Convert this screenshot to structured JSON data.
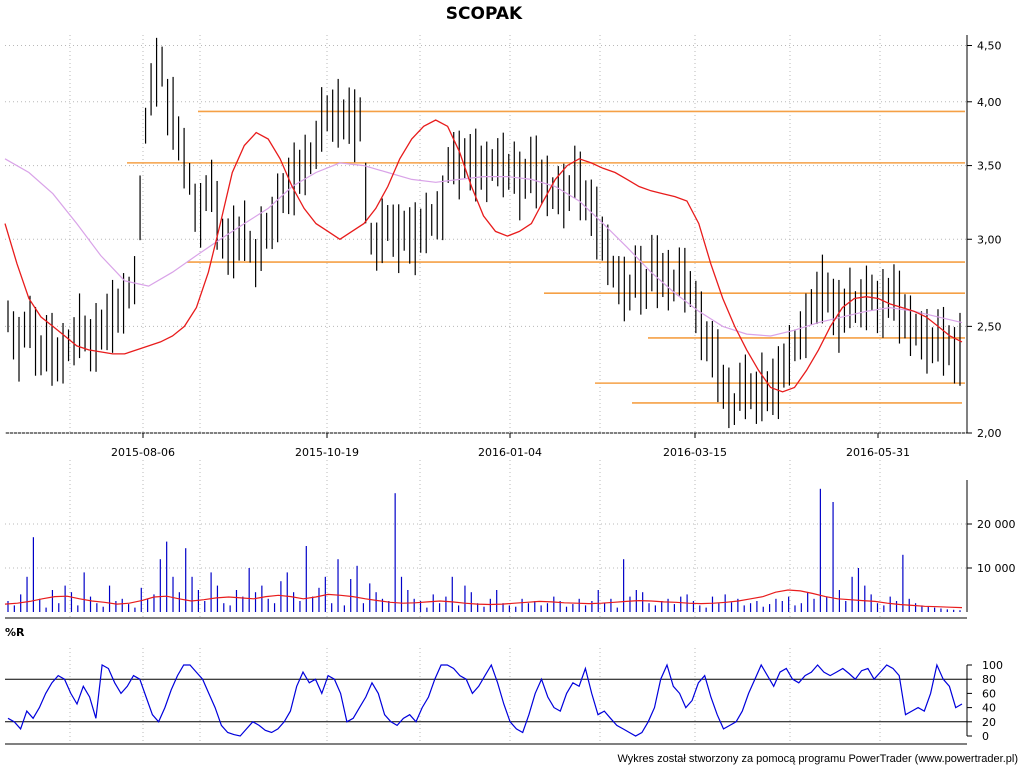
{
  "chart_data": [
    {
      "panel": "price",
      "type": "line",
      "title": "SCOPAK",
      "y_scale": "log",
      "ylim": [
        2.0,
        4.6
      ],
      "y_ticks": [
        "4,50",
        "4,00",
        "3,50",
        "3,00",
        "2,50",
        "2,00"
      ],
      "y_tick_values": [
        4.5,
        4.0,
        3.5,
        3.0,
        2.5,
        2.0
      ],
      "x_ticks": [
        "2015-08-06",
        "2015-10-19",
        "2016-01-04",
        "2016-03-15",
        "2016-05-31"
      ],
      "grid": true,
      "colors": {
        "bars": "#000000",
        "ma_short": "#e81c1c",
        "ma_long": "#d9a3e8",
        "support_lines": "#f5a046"
      },
      "bar_series_close": [
        2.55,
        2.45,
        2.38,
        2.48,
        2.52,
        2.42,
        2.35,
        2.41,
        2.38,
        2.33,
        2.36,
        2.4,
        2.42,
        2.5,
        2.46,
        2.4,
        2.44,
        2.48,
        2.52,
        2.55,
        2.58,
        2.62,
        2.68,
        2.75,
        3.2,
        3.8,
        4.1,
        4.25,
        4.3,
        3.95,
        3.9,
        3.7,
        3.55,
        3.4,
        3.2,
        3.15,
        3.3,
        3.35,
        3.15,
        3.0,
        2.95,
        2.98,
        3.0,
        3.05,
        2.95,
        2.85,
        3.0,
        3.05,
        3.1,
        3.2,
        3.3,
        3.35,
        3.4,
        3.45,
        3.5,
        3.55,
        3.65,
        3.85,
        3.9,
        3.88,
        3.9,
        3.85,
        3.88,
        3.8,
        3.85,
        3.3,
        3.0,
        2.95,
        3.05,
        3.1,
        3.05,
        3.0,
        3.05,
        3.02,
        3.0,
        3.05,
        3.1,
        3.12,
        3.15,
        3.2,
        3.5,
        3.55,
        3.5,
        3.55,
        3.52,
        3.5,
        3.48,
        3.45,
        3.5,
        3.52,
        3.5,
        3.45,
        3.48,
        3.35,
        3.4,
        3.5,
        3.45,
        3.38,
        3.35,
        3.3,
        3.32,
        3.28,
        3.3,
        3.45,
        3.35,
        3.25,
        3.2,
        3.1,
        3.0,
        2.9,
        2.8,
        2.75,
        2.7,
        2.68,
        2.8,
        2.75,
        2.7,
        2.85,
        2.8,
        2.78,
        2.75,
        2.72,
        2.8,
        2.75,
        2.7,
        2.6,
        2.5,
        2.42,
        2.38,
        2.3,
        2.2,
        2.15,
        2.1,
        2.2,
        2.2,
        2.18,
        2.15,
        2.2,
        2.18,
        2.2,
        2.22,
        2.3,
        2.35,
        2.4,
        2.45,
        2.5,
        2.6,
        2.65,
        2.7,
        2.68,
        2.6,
        2.55,
        2.58,
        2.65,
        2.6,
        2.62,
        2.65,
        2.68,
        2.6,
        2.62,
        2.65,
        2.68,
        2.6,
        2.55,
        2.5,
        2.48,
        2.45,
        2.42,
        2.4,
        2.45,
        2.42,
        2.4,
        2.35,
        2.38
      ],
      "ma_short": [
        3.1,
        2.85,
        2.65,
        2.55,
        2.5,
        2.45,
        2.4,
        2.38,
        2.37,
        2.36,
        2.36,
        2.38,
        2.4,
        2.42,
        2.45,
        2.5,
        2.6,
        2.8,
        3.1,
        3.45,
        3.65,
        3.75,
        3.7,
        3.55,
        3.35,
        3.2,
        3.1,
        3.05,
        3.0,
        3.05,
        3.1,
        3.2,
        3.35,
        3.55,
        3.7,
        3.8,
        3.85,
        3.8,
        3.6,
        3.35,
        3.15,
        3.05,
        3.02,
        3.05,
        3.1,
        3.25,
        3.4,
        3.5,
        3.55,
        3.52,
        3.48,
        3.45,
        3.4,
        3.35,
        3.32,
        3.3,
        3.28,
        3.25,
        3.1,
        2.85,
        2.65,
        2.5,
        2.38,
        2.28,
        2.2,
        2.18,
        2.2,
        2.28,
        2.38,
        2.5,
        2.6,
        2.65,
        2.66,
        2.65,
        2.62,
        2.6,
        2.58,
        2.55,
        2.5,
        2.45,
        2.42
      ],
      "ma_long": [
        3.55,
        3.45,
        3.3,
        3.1,
        2.9,
        2.75,
        2.72,
        2.8,
        2.9,
        3.0,
        3.1,
        3.2,
        3.35,
        3.45,
        3.52,
        3.5,
        3.45,
        3.4,
        3.38,
        3.4,
        3.42,
        3.42,
        3.4,
        3.35,
        3.25,
        3.1,
        2.95,
        2.8,
        2.68,
        2.58,
        2.5,
        2.46,
        2.45,
        2.48,
        2.52,
        2.55,
        2.58,
        2.6,
        2.58,
        2.55,
        2.52
      ],
      "support_lines": [
        3.92,
        3.52,
        2.86,
        2.68,
        2.44,
        2.22,
        2.13
      ]
    },
    {
      "panel": "volume",
      "type": "bar",
      "ylim": [
        0,
        30000
      ],
      "y_ticks": [
        "20 000",
        "10 000"
      ],
      "y_tick_values": [
        20000,
        10000
      ],
      "grid": true,
      "colors": {
        "bars": "#0000c8",
        "average": "#e81c1c"
      },
      "values": [
        2500,
        1500,
        4000,
        8000,
        17000,
        3000,
        1000,
        5000,
        2000,
        6000,
        4500,
        1500,
        9000,
        3500,
        2000,
        1200,
        6000,
        2500,
        3000,
        1800,
        1000,
        5500,
        3000,
        4000,
        12000,
        16000,
        8000,
        4500,
        14500,
        8000,
        5000,
        2500,
        9000,
        6000,
        2000,
        1500,
        5000,
        3500,
        10000,
        4500,
        6000,
        3000,
        2000,
        7000,
        9000,
        4500,
        2500,
        15000,
        3500,
        5500,
        8000,
        2000,
        12000,
        1500,
        7500,
        10500,
        2000,
        6500,
        4500,
        3000,
        2500,
        27000,
        8000,
        5000,
        3000,
        2500,
        1000,
        4000,
        2000,
        3500,
        8000,
        1500,
        6000,
        4500,
        2000,
        1200,
        3000,
        5000,
        2000,
        1500,
        1200,
        3000,
        2000,
        2500,
        1500,
        2000,
        3500,
        2500,
        1200,
        1800,
        3000,
        1500,
        2500,
        5000,
        2000,
        3000,
        1000,
        12000,
        3500,
        5000,
        4500,
        2000,
        1500,
        2500,
        3000,
        1800,
        3500,
        4000,
        2500,
        1500,
        1000,
        3500,
        2000,
        4000,
        2200,
        3000,
        1500,
        2000,
        2500,
        1200,
        1800,
        3000,
        2500,
        3500,
        1500,
        2000,
        4500,
        3000,
        28000,
        3500,
        25000,
        5000,
        2500,
        8000,
        10000,
        6000,
        4000,
        2000,
        1500,
        3500,
        2500,
        13000,
        3000,
        2000,
        1500,
        1200,
        1000,
        800,
        600,
        500,
        400
      ],
      "average": [
        1800,
        2000,
        2400,
        3000,
        3500,
        3600,
        3000,
        2500,
        2200,
        1800,
        2000,
        2600,
        3400,
        3600,
        3000,
        2500,
        2800,
        3200,
        3400,
        3200,
        3000,
        3500,
        3800,
        3500,
        3000,
        3400,
        4000,
        3800,
        3500,
        3000,
        2600,
        2200,
        2000,
        2100,
        2300,
        2500,
        2300,
        2000,
        1800,
        1700,
        1800,
        2000,
        2200,
        2400,
        2300,
        2100,
        2000,
        1900,
        2000,
        2200,
        2400,
        2600,
        2500,
        2300,
        2200,
        2000,
        1900,
        2000,
        2200,
        2500,
        3000,
        3500,
        4500,
        5000,
        4800,
        4200,
        3500,
        3000,
        2800,
        2600,
        2400,
        2000,
        1700,
        1500,
        1300,
        1200,
        1100,
        1000
      ]
    },
    {
      "panel": "williams_r",
      "type": "line",
      "label": "%R",
      "ylim": [
        0,
        100
      ],
      "y_ticks": [
        "100",
        "80",
        "60",
        "40",
        "20",
        "0"
      ],
      "y_tick_values": [
        100,
        80,
        60,
        40,
        20,
        0
      ],
      "reference_lines": [
        80,
        20
      ],
      "colors": {
        "line": "#0000dc",
        "reference": "#000000"
      },
      "values": [
        25,
        20,
        10,
        35,
        25,
        40,
        60,
        75,
        85,
        80,
        60,
        45,
        70,
        55,
        25,
        100,
        95,
        75,
        60,
        70,
        85,
        80,
        55,
        30,
        20,
        40,
        65,
        85,
        100,
        100,
        90,
        80,
        60,
        40,
        15,
        5,
        2,
        0,
        10,
        20,
        15,
        8,
        5,
        10,
        20,
        35,
        70,
        90,
        75,
        80,
        60,
        85,
        80,
        60,
        20,
        25,
        40,
        55,
        75,
        60,
        30,
        20,
        15,
        25,
        30,
        20,
        40,
        55,
        80,
        100,
        100,
        95,
        85,
        80,
        60,
        70,
        85,
        100,
        75,
        45,
        20,
        10,
        5,
        30,
        60,
        80,
        55,
        40,
        35,
        60,
        75,
        70,
        95,
        60,
        30,
        35,
        25,
        15,
        10,
        5,
        0,
        5,
        20,
        40,
        80,
        100,
        70,
        60,
        40,
        50,
        75,
        85,
        55,
        30,
        10,
        15,
        20,
        35,
        60,
        80,
        100,
        85,
        70,
        90,
        95,
        80,
        75,
        85,
        90,
        100,
        90,
        85,
        90,
        95,
        88,
        80,
        92,
        95,
        80,
        90,
        100,
        95,
        85,
        30,
        35,
        40,
        35,
        60,
        100,
        80,
        70,
        40,
        45
      ]
    }
  ],
  "footer": "Wykres został stworzony za pomocą programu PowerTrader (www.powertrader.pl)"
}
